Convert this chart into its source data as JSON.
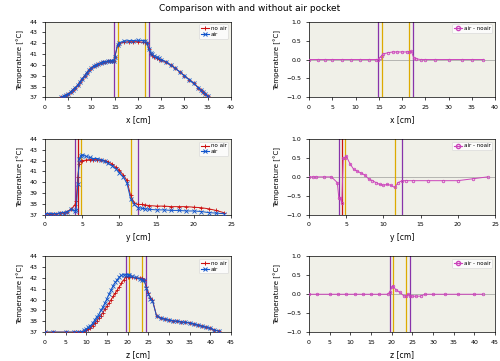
{
  "title": "Comparison with and without air pocket",
  "panels": [
    {
      "axis": "x",
      "xlabel": "x [cm]",
      "xlim": [
        0,
        40
      ],
      "xticks": [
        0,
        5,
        10,
        15,
        20,
        25,
        30,
        35,
        40
      ],
      "ylim_temp": [
        37,
        44
      ],
      "ylim_diff": [
        -1,
        1
      ],
      "yticks_temp": [
        37,
        38,
        39,
        40,
        41,
        42,
        43,
        44
      ],
      "yticks_diff": [
        -1,
        -0.5,
        0,
        0.5,
        1
      ],
      "purple_lines": [
        14.8,
        22.3
      ],
      "yellow_lines": [
        15.6,
        21.5
      ],
      "noair_x": [
        3.5,
        4.0,
        4.5,
        5.0,
        5.5,
        6.0,
        6.5,
        7.0,
        7.5,
        8.0,
        8.5,
        9.0,
        9.5,
        10.0,
        10.5,
        11.0,
        11.5,
        12.0,
        12.5,
        13.0,
        13.5,
        14.0,
        14.5,
        14.8,
        15.0,
        15.6,
        16.0,
        17.0,
        18.0,
        19.0,
        20.0,
        21.0,
        21.5,
        22.0,
        22.3,
        22.8,
        23.0,
        23.5,
        24.0,
        24.5,
        25.0,
        26.0,
        27.0,
        28.0,
        29.0,
        30.0,
        31.0,
        32.0,
        33.0,
        33.5,
        34.0,
        34.5,
        35.0
      ],
      "noair_y": [
        37.0,
        37.1,
        37.2,
        37.3,
        37.5,
        37.7,
        37.9,
        38.1,
        38.4,
        38.7,
        39.0,
        39.3,
        39.5,
        39.7,
        39.9,
        40.0,
        40.1,
        40.2,
        40.3,
        40.3,
        40.35,
        40.35,
        40.4,
        40.4,
        40.7,
        41.8,
        42.0,
        42.1,
        42.15,
        42.15,
        42.15,
        42.1,
        42.1,
        42.0,
        41.5,
        41.0,
        40.9,
        40.75,
        40.65,
        40.55,
        40.45,
        40.25,
        40.0,
        39.7,
        39.35,
        39.0,
        38.65,
        38.3,
        37.9,
        37.7,
        37.5,
        37.3,
        37.1
      ],
      "air_x": [
        3.5,
        4.0,
        4.5,
        5.0,
        5.5,
        6.0,
        6.5,
        7.0,
        7.5,
        8.0,
        8.5,
        9.0,
        9.5,
        10.0,
        10.5,
        11.0,
        11.5,
        12.0,
        12.5,
        13.0,
        13.5,
        14.0,
        14.5,
        14.8,
        15.0,
        15.6,
        16.0,
        17.0,
        18.0,
        19.0,
        20.0,
        21.0,
        21.5,
        22.0,
        22.3,
        22.8,
        23.0,
        23.5,
        24.0,
        24.5,
        25.0,
        26.0,
        27.0,
        28.0,
        29.0,
        30.0,
        31.0,
        32.0,
        33.0,
        33.5,
        34.0,
        34.5,
        35.0
      ],
      "air_y": [
        37.0,
        37.1,
        37.2,
        37.3,
        37.5,
        37.7,
        37.9,
        38.1,
        38.4,
        38.7,
        39.0,
        39.3,
        39.5,
        39.7,
        39.9,
        40.0,
        40.1,
        40.2,
        40.3,
        40.3,
        40.35,
        40.35,
        40.4,
        40.4,
        40.7,
        41.85,
        42.05,
        42.2,
        42.25,
        42.25,
        42.28,
        42.25,
        42.25,
        42.0,
        41.5,
        41.1,
        41.0,
        40.8,
        40.7,
        40.6,
        40.5,
        40.3,
        40.0,
        39.7,
        39.35,
        39.0,
        38.65,
        38.3,
        37.9,
        37.7,
        37.5,
        37.3,
        37.1
      ],
      "diff_x": [
        0,
        2,
        3.5,
        5,
        7,
        9,
        11,
        13,
        14.5,
        14.8,
        15.2,
        15.6,
        16,
        17,
        18,
        19,
        20,
        21,
        21.5,
        22.0,
        22.5,
        23,
        24,
        25,
        27,
        30,
        33,
        35,
        37.5
      ],
      "diff_y": [
        0,
        0,
        0,
        0,
        0,
        0,
        0,
        0,
        0,
        0,
        0.05,
        0.1,
        0.15,
        0.18,
        0.2,
        0.2,
        0.2,
        0.2,
        0.2,
        0.22,
        0.05,
        0.02,
        0.0,
        0.0,
        0.0,
        0.0,
        0.0,
        0.0,
        0.0
      ]
    },
    {
      "axis": "y",
      "xlabel": "y [cm]",
      "xlim": [
        0,
        25
      ],
      "xticks": [
        0,
        5,
        10,
        15,
        20,
        25
      ],
      "ylim_temp": [
        37,
        44
      ],
      "ylim_diff": [
        -1,
        1
      ],
      "yticks_temp": [
        37,
        38,
        39,
        40,
        41,
        42,
        43,
        44
      ],
      "yticks_diff": [
        -1,
        -0.5,
        0,
        0.5,
        1
      ],
      "purple_lines": [
        4.0,
        12.5
      ],
      "yellow_lines": [
        4.8,
        11.5
      ],
      "red_line": 4.4,
      "noair_x": [
        0,
        0.5,
        1,
        1.5,
        2,
        2.5,
        3,
        3.5,
        4.0,
        4.2,
        4.4,
        4.6,
        4.8,
        5.0,
        5.5,
        6.0,
        6.5,
        7.0,
        7.5,
        8.0,
        8.5,
        9.0,
        9.5,
        10.0,
        10.5,
        11.0,
        11.5,
        12.0,
        12.5,
        13.0,
        13.5,
        14.0,
        15.0,
        16.0,
        17.0,
        18.0,
        19.0,
        20.0,
        21.0,
        22.0,
        23.0,
        24.0
      ],
      "noair_y": [
        37.1,
        37.1,
        37.1,
        37.1,
        37.15,
        37.2,
        37.3,
        37.5,
        37.9,
        38.3,
        40.5,
        41.7,
        41.95,
        42.0,
        42.05,
        42.1,
        42.1,
        42.1,
        42.05,
        42.0,
        41.9,
        41.7,
        41.4,
        41.1,
        40.7,
        40.2,
        38.8,
        38.1,
        37.95,
        37.95,
        37.9,
        37.85,
        37.8,
        37.8,
        37.75,
        37.75,
        37.75,
        37.7,
        37.65,
        37.55,
        37.4,
        37.2
      ],
      "air_x": [
        0,
        0.5,
        1,
        1.5,
        2,
        2.5,
        3,
        3.5,
        4.0,
        4.2,
        4.4,
        4.6,
        4.8,
        5.0,
        5.5,
        6.0,
        6.5,
        7.0,
        7.5,
        8.0,
        8.5,
        9.0,
        9.5,
        10.0,
        10.5,
        11.0,
        11.5,
        12.0,
        12.5,
        13.0,
        13.5,
        14.0,
        15.0,
        16.0,
        17.0,
        18.0,
        19.0,
        20.0,
        21.0,
        22.0,
        23.0,
        24.0
      ],
      "air_y": [
        37.1,
        37.1,
        37.1,
        37.1,
        37.15,
        37.2,
        37.3,
        37.5,
        37.35,
        37.45,
        39.8,
        42.2,
        42.45,
        42.55,
        42.4,
        42.3,
        42.2,
        42.2,
        42.1,
        41.95,
        41.75,
        41.55,
        41.25,
        40.9,
        40.5,
        39.95,
        38.5,
        37.95,
        37.65,
        37.6,
        37.55,
        37.5,
        37.45,
        37.45,
        37.4,
        37.4,
        37.35,
        37.35,
        37.3,
        37.2,
        37.15,
        37.1
      ],
      "diff_x": [
        0,
        0.5,
        1,
        2,
        3,
        3.8,
        4.0,
        4.2,
        4.4,
        4.6,
        4.8,
        5.0,
        5.5,
        6.0,
        6.5,
        7.0,
        7.5,
        8.0,
        8.5,
        9.0,
        9.5,
        10.0,
        10.5,
        11.0,
        11.5,
        12.0,
        12.5,
        13.0,
        14.0,
        16.0,
        18.0,
        20.0,
        22.0,
        24.0
      ],
      "diff_y": [
        0,
        0,
        0,
        0,
        0,
        -0.15,
        -0.55,
        -0.55,
        -0.7,
        0.5,
        0.5,
        0.55,
        0.35,
        0.2,
        0.15,
        0.1,
        0.05,
        -0.05,
        -0.1,
        -0.15,
        -0.2,
        -0.22,
        -0.2,
        -0.22,
        -0.28,
        -0.15,
        -0.1,
        -0.1,
        -0.1,
        -0.1,
        -0.1,
        -0.1,
        -0.05,
        0
      ]
    },
    {
      "axis": "z",
      "xlabel": "z [cm]",
      "xlim": [
        0,
        45
      ],
      "xticks": [
        0,
        5,
        10,
        15,
        20,
        25,
        30,
        35,
        40,
        45
      ],
      "ylim_temp": [
        37,
        44
      ],
      "ylim_diff": [
        -1,
        1
      ],
      "yticks_temp": [
        37,
        38,
        39,
        40,
        41,
        42,
        43,
        44
      ],
      "yticks_diff": [
        -1,
        -0.5,
        0,
        0.5,
        1
      ],
      "purple_lines": [
        19.5,
        24.5
      ],
      "yellow_lines": [
        20.3,
        23.5
      ],
      "noair_x": [
        0,
        2,
        5,
        7,
        8,
        9,
        9.5,
        10,
        10.5,
        11,
        11.5,
        12,
        12.5,
        13,
        13.5,
        14,
        14.5,
        15,
        15.5,
        16,
        16.5,
        17,
        17.5,
        18,
        18.5,
        19,
        19.5,
        20.0,
        20.3,
        21,
        22,
        23,
        23.5,
        24.0,
        24.5,
        25,
        25.5,
        26,
        27,
        28,
        29,
        30,
        31,
        32,
        33,
        34,
        35,
        36,
        37,
        38,
        39,
        40,
        41,
        42
      ],
      "noair_y": [
        37.0,
        37.0,
        37.0,
        37.0,
        37.0,
        37.05,
        37.1,
        37.2,
        37.3,
        37.4,
        37.6,
        37.8,
        38.0,
        38.3,
        38.5,
        38.8,
        39.1,
        39.4,
        39.7,
        40.0,
        40.3,
        40.6,
        40.9,
        41.2,
        41.5,
        41.8,
        42.05,
        42.1,
        42.1,
        42.05,
        42.0,
        42.0,
        42.0,
        41.8,
        41.2,
        40.6,
        40.2,
        40.0,
        38.5,
        38.3,
        38.2,
        38.1,
        38.05,
        38.0,
        37.95,
        37.9,
        37.85,
        37.75,
        37.65,
        37.55,
        37.45,
        37.35,
        37.2,
        37.1
      ],
      "air_x": [
        0,
        2,
        5,
        7,
        8,
        9,
        9.5,
        10,
        10.5,
        11,
        11.5,
        12,
        12.5,
        13,
        13.5,
        14,
        14.5,
        15,
        15.5,
        16,
        16.5,
        17,
        17.5,
        18,
        18.5,
        19,
        19.5,
        20.0,
        20.3,
        21,
        22,
        23,
        23.5,
        24.0,
        24.5,
        25,
        25.5,
        26,
        27,
        28,
        29,
        30,
        31,
        32,
        33,
        34,
        35,
        36,
        37,
        38,
        39,
        40,
        41,
        42
      ],
      "air_y": [
        37.0,
        37.0,
        37.0,
        37.0,
        37.0,
        37.05,
        37.15,
        37.3,
        37.45,
        37.6,
        37.8,
        38.1,
        38.4,
        38.6,
        39.0,
        39.3,
        39.7,
        40.1,
        40.5,
        40.9,
        41.3,
        41.6,
        41.85,
        42.1,
        42.25,
        42.3,
        42.3,
        42.3,
        42.3,
        42.15,
        42.05,
        41.9,
        41.85,
        41.8,
        41.1,
        40.5,
        40.1,
        39.9,
        38.5,
        38.3,
        38.2,
        38.1,
        38.05,
        38.0,
        37.95,
        37.9,
        37.85,
        37.75,
        37.65,
        37.55,
        37.45,
        37.35,
        37.2,
        37.1
      ],
      "diff_x": [
        0,
        2,
        5,
        7,
        9,
        11,
        13,
        15,
        17,
        19,
        19.5,
        20.0,
        20.3,
        21,
        22,
        23,
        23.5,
        24.0,
        24.5,
        25,
        26,
        27,
        28,
        30,
        33,
        36,
        40,
        42
      ],
      "diff_y": [
        0,
        0,
        0,
        0,
        0,
        0,
        0,
        0,
        0,
        0,
        0.05,
        0.18,
        0.22,
        0.12,
        0.05,
        -0.05,
        -0.05,
        0.0,
        -0.05,
        -0.05,
        -0.05,
        -0.05,
        0,
        0,
        0,
        0,
        0,
        0
      ]
    }
  ],
  "colors": {
    "noair": "#cc1111",
    "air": "#1155cc",
    "diff": "#cc44bb",
    "purple_line": "#8833aa",
    "yellow_line": "#ddaa00",
    "red_line": "#cc1111"
  },
  "bg_color": "#f0f0e8"
}
